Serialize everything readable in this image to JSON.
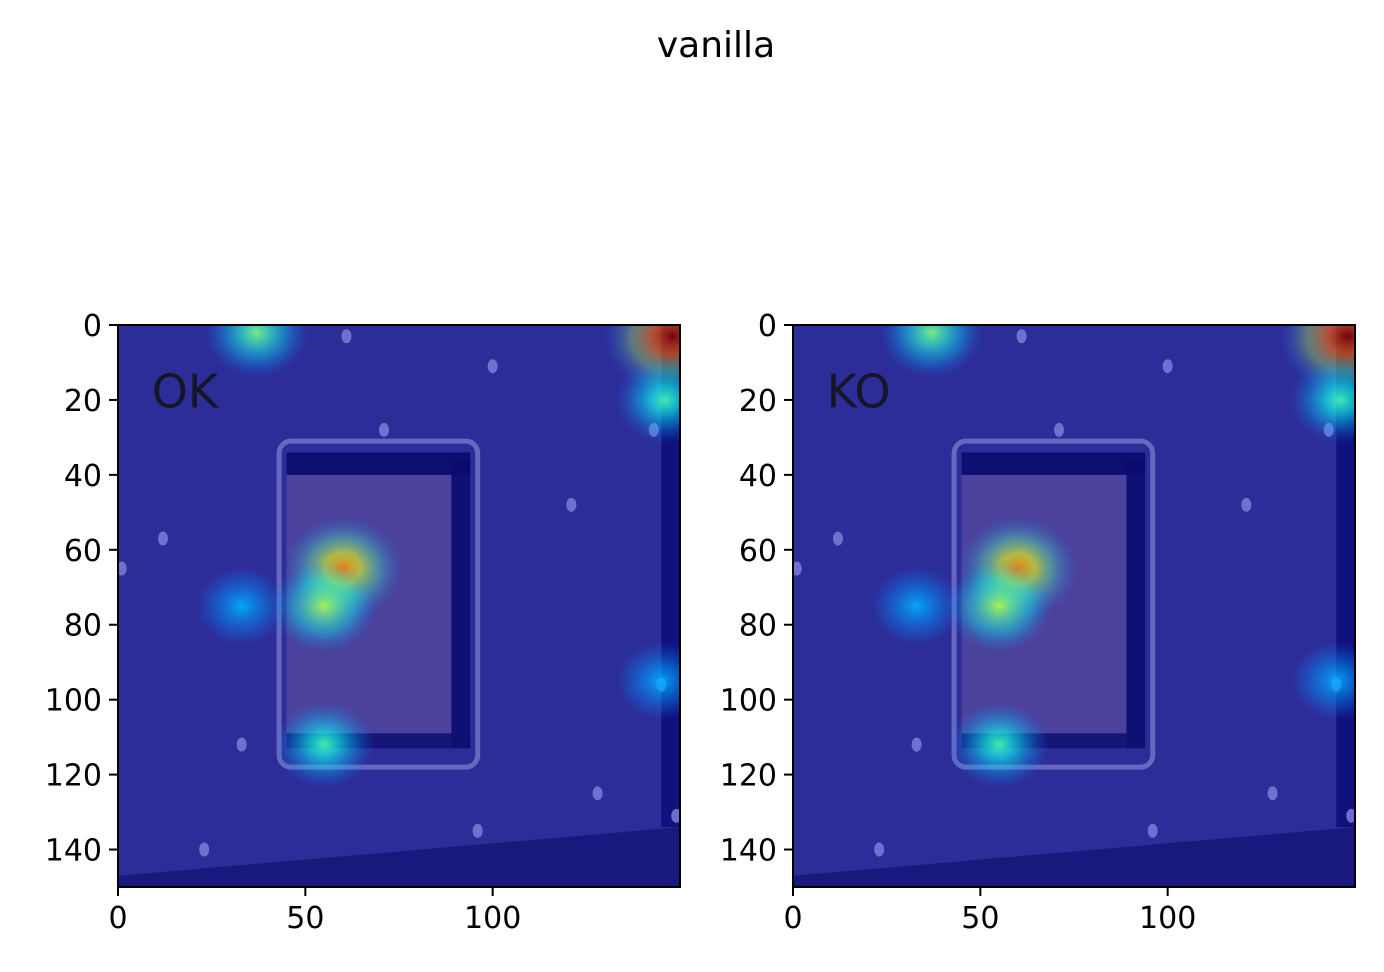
{
  "chart_data": {
    "type": "heatmap",
    "title": "vanilla",
    "colormap": "jet",
    "panels": [
      {
        "label": "OK",
        "xlim": [
          0,
          150
        ],
        "ylim": [
          150,
          0
        ],
        "xticks": [
          0,
          50,
          100
        ],
        "yticks": [
          0,
          20,
          40,
          60,
          80,
          100,
          120,
          140
        ],
        "hotspots": [
          {
            "x": 60,
            "y": 65,
            "intensity": 0.75
          },
          {
            "x": 55,
            "y": 75,
            "intensity": 0.55
          },
          {
            "x": 55,
            "y": 112,
            "intensity": 0.45
          },
          {
            "x": 37,
            "y": 2,
            "intensity": 0.5
          },
          {
            "x": 148,
            "y": 3,
            "intensity": 1.0
          },
          {
            "x": 146,
            "y": 20,
            "intensity": 0.45
          },
          {
            "x": 145,
            "y": 95,
            "intensity": 0.3
          },
          {
            "x": 33,
            "y": 75,
            "intensity": 0.3
          }
        ]
      },
      {
        "label": "KO",
        "xlim": [
          0,
          150
        ],
        "ylim": [
          150,
          0
        ],
        "xticks": [
          0,
          50,
          100
        ],
        "yticks": [
          0,
          20,
          40,
          60,
          80,
          100,
          120,
          140
        ],
        "hotspots": [
          {
            "x": 60,
            "y": 65,
            "intensity": 0.75
          },
          {
            "x": 55,
            "y": 75,
            "intensity": 0.55
          },
          {
            "x": 55,
            "y": 112,
            "intensity": 0.45
          },
          {
            "x": 37,
            "y": 2,
            "intensity": 0.5
          },
          {
            "x": 148,
            "y": 3,
            "intensity": 1.0
          },
          {
            "x": 146,
            "y": 20,
            "intensity": 0.45
          },
          {
            "x": 145,
            "y": 95,
            "intensity": 0.3
          },
          {
            "x": 33,
            "y": 75,
            "intensity": 0.3
          }
        ]
      }
    ]
  }
}
